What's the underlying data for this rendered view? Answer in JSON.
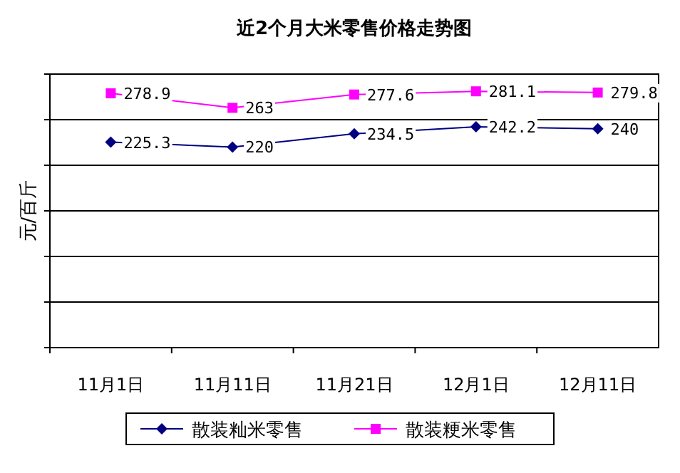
{
  "chart_data": {
    "type": "line",
    "title": "近2个月大米零售价格走势图",
    "ylabel": "元/百斤",
    "categories": [
      "11月1日",
      "11月11日",
      "11月21日",
      "12月1日",
      "12月11日"
    ],
    "series": [
      {
        "name": "散装籼米零售",
        "color": "#000080",
        "marker": "diamond",
        "values": [
          225.3,
          220,
          234.5,
          242.2,
          240
        ]
      },
      {
        "name": "散装粳米零售",
        "color": "#ff00ff",
        "marker": "square",
        "values": [
          278.9,
          263,
          277.6,
          281.1,
          279.8
        ]
      }
    ],
    "ylim": [
      0,
      300
    ],
    "yticks": [
      {
        "value": 0,
        "label": null
      },
      {
        "value": 50,
        "label": null
      },
      {
        "value": 100,
        "label": null
      },
      {
        "value": 150,
        "label": null
      },
      {
        "value": 200,
        "label": null
      },
      {
        "value": 250,
        "label": null
      },
      {
        "value": 300,
        "label": null
      }
    ],
    "tick_labels": "x",
    "grid": "y",
    "data_labels": true,
    "legend": "bottom",
    "line_style": "solid"
  }
}
